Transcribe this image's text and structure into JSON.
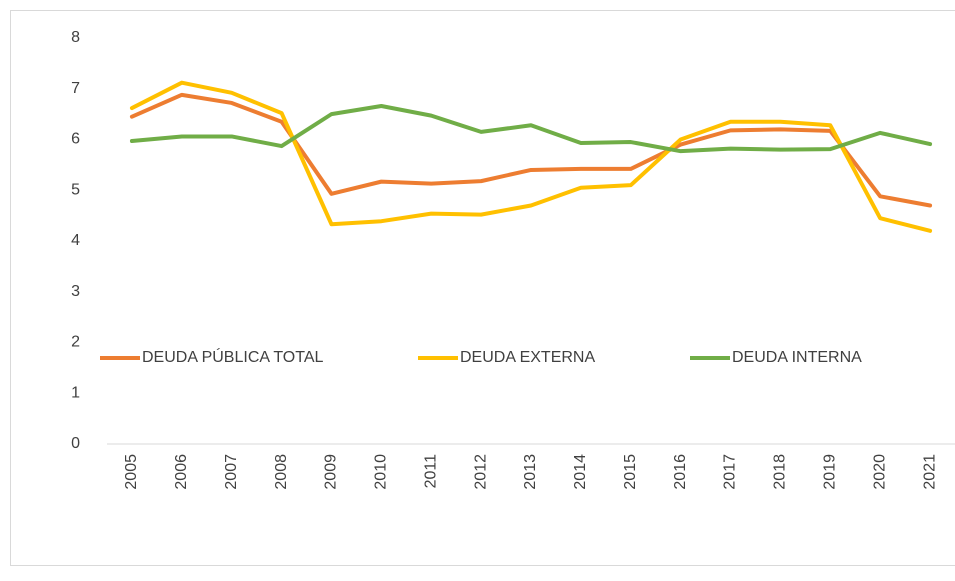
{
  "chart_data": {
    "type": "line",
    "categories": [
      "2005",
      "2006",
      "2007",
      "2008",
      "2009",
      "2010",
      "2011",
      "2012",
      "2013",
      "2014",
      "2015",
      "2016",
      "2017",
      "2018",
      "2019",
      "2020",
      "2021"
    ],
    "series": [
      {
        "name": "DEUDA PÚBLICA TOTAL",
        "color": "#ed7d31",
        "values": [
          6.45,
          6.88,
          6.72,
          6.35,
          4.93,
          5.17,
          5.13,
          5.18,
          5.4,
          5.42,
          5.42,
          5.9,
          6.18,
          6.2,
          6.17,
          4.88,
          4.7
        ]
      },
      {
        "name": "DEUDA EXTERNA",
        "color": "#ffc000",
        "values": [
          6.62,
          7.12,
          6.92,
          6.52,
          4.33,
          4.39,
          4.54,
          4.52,
          4.7,
          5.05,
          5.1,
          6.0,
          6.35,
          6.35,
          6.28,
          4.45,
          4.2
        ]
      },
      {
        "name": "DEUDA INTERNA",
        "color": "#70ad47",
        "values": [
          5.97,
          6.06,
          6.06,
          5.87,
          6.5,
          6.66,
          6.47,
          6.15,
          6.28,
          5.93,
          5.95,
          5.77,
          5.82,
          5.8,
          5.81,
          6.13,
          5.91
        ]
      }
    ],
    "ylim": [
      0,
      8
    ],
    "yticks": [
      0,
      1,
      2,
      3,
      4,
      5,
      6,
      7,
      8
    ],
    "grid": false
  }
}
